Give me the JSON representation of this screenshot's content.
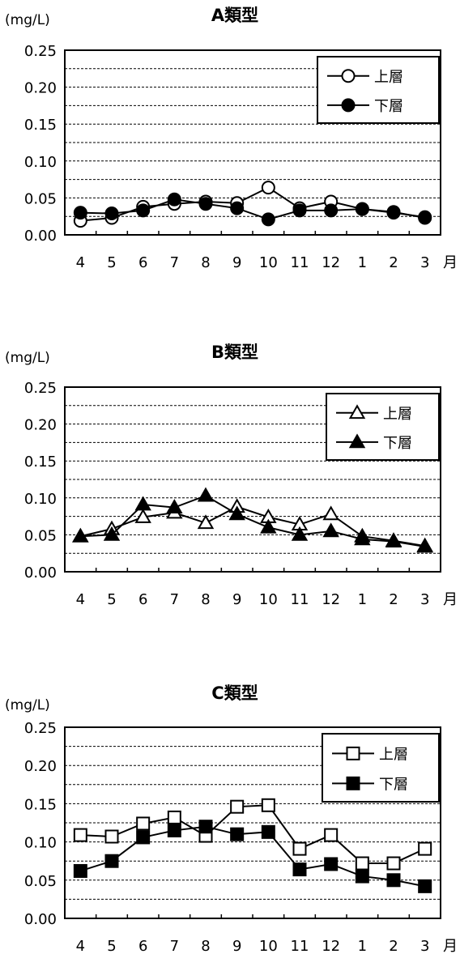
{
  "chart_data": [
    {
      "type": "line",
      "title": "A類型",
      "ylabel": "(mg/L)",
      "xlabel": "月",
      "ylim": [
        0,
        0.25
      ],
      "yticks": [
        "0.00",
        "0.05",
        "0.10",
        "0.15",
        "0.20",
        "0.25"
      ],
      "categories": [
        "4",
        "5",
        "6",
        "7",
        "8",
        "9",
        "10",
        "11",
        "12",
        "1",
        "2",
        "3"
      ],
      "legend": "top-right",
      "series": [
        {
          "name": "上層",
          "marker": "circle",
          "filled": false,
          "values": [
            0.019,
            0.023,
            0.038,
            0.042,
            0.045,
            0.043,
            0.064,
            0.036,
            0.045,
            0.035,
            0.031,
            0.023
          ]
        },
        {
          "name": "下層",
          "marker": "circle",
          "filled": true,
          "values": [
            0.03,
            0.029,
            0.033,
            0.048,
            0.042,
            0.036,
            0.021,
            0.033,
            0.033,
            0.035,
            0.03,
            0.024
          ]
        }
      ]
    },
    {
      "type": "line",
      "title": "B類型",
      "ylabel": "(mg/L)",
      "xlabel": "月",
      "ylim": [
        0,
        0.25
      ],
      "yticks": [
        "0.00",
        "0.05",
        "0.10",
        "0.15",
        "0.20",
        "0.25"
      ],
      "categories": [
        "4",
        "5",
        "6",
        "7",
        "8",
        "9",
        "10",
        "11",
        "12",
        "1",
        "2",
        "3"
      ],
      "legend": "top-right",
      "series": [
        {
          "name": "上層",
          "marker": "triangle",
          "filled": false,
          "values": [
            0.048,
            0.058,
            0.074,
            0.08,
            0.066,
            0.088,
            0.074,
            0.064,
            0.078,
            0.048,
            0.042,
            0.035
          ]
        },
        {
          "name": "下層",
          "marker": "triangle",
          "filled": true,
          "values": [
            0.048,
            0.05,
            0.091,
            0.087,
            0.103,
            0.078,
            0.06,
            0.05,
            0.055,
            0.044,
            0.041,
            0.034
          ]
        }
      ]
    },
    {
      "type": "line",
      "title": "C類型",
      "ylabel": "(mg/L)",
      "xlabel": "月",
      "ylim": [
        0,
        0.25
      ],
      "yticks": [
        "0.00",
        "0.05",
        "0.10",
        "0.15",
        "0.20",
        "0.25"
      ],
      "categories": [
        "4",
        "5",
        "6",
        "7",
        "8",
        "9",
        "10",
        "11",
        "12",
        "1",
        "2",
        "3"
      ],
      "legend": "top-right",
      "series": [
        {
          "name": "上層",
          "marker": "square",
          "filled": false,
          "values": [
            0.109,
            0.107,
            0.124,
            0.132,
            0.108,
            0.146,
            0.148,
            0.091,
            0.109,
            0.072,
            0.072,
            0.091
          ]
        },
        {
          "name": "下層",
          "marker": "square",
          "filled": true,
          "values": [
            0.062,
            0.075,
            0.106,
            0.115,
            0.12,
            0.11,
            0.113,
            0.064,
            0.071,
            0.055,
            0.05,
            0.042
          ]
        }
      ]
    }
  ]
}
